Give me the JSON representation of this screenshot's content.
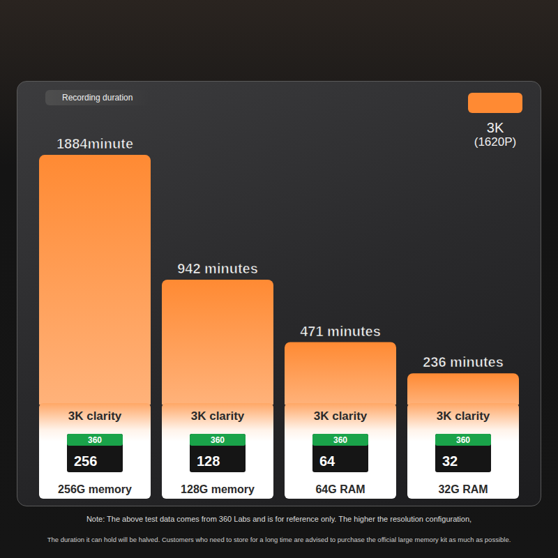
{
  "chart_data": {
    "type": "bar",
    "ylabel": "Recording duration",
    "categories": [
      "256G memory",
      "128G memory",
      "64G RAM",
      "32G RAM"
    ],
    "series": [
      {
        "name": "3K (1620P)",
        "color": "#ff8a33",
        "values": [
          1884,
          942,
          471,
          236
        ]
      }
    ],
    "value_labels": [
      "1884minute",
      "942 minutes",
      "471 minutes",
      "236 minutes"
    ],
    "ylim": [
      0,
      2000
    ],
    "yticks": [
      0,
      2000
    ],
    "tick_labels": false,
    "grid": false,
    "legend": "upper right",
    "data_labels": true,
    "annotations": {
      "bar_text": "3K clarity",
      "card_brand": "360",
      "card_capacities": [
        "256",
        "128",
        "64",
        "32"
      ],
      "note": [
        "Note: The above test data comes from 360 Labs and is for reference only. The higher the resolution configuration,",
        "The duration it can hold will be halved. Customers who need to store for a long time are advised to purchase the official large memory kit as much as possible."
      ]
    }
  }
}
